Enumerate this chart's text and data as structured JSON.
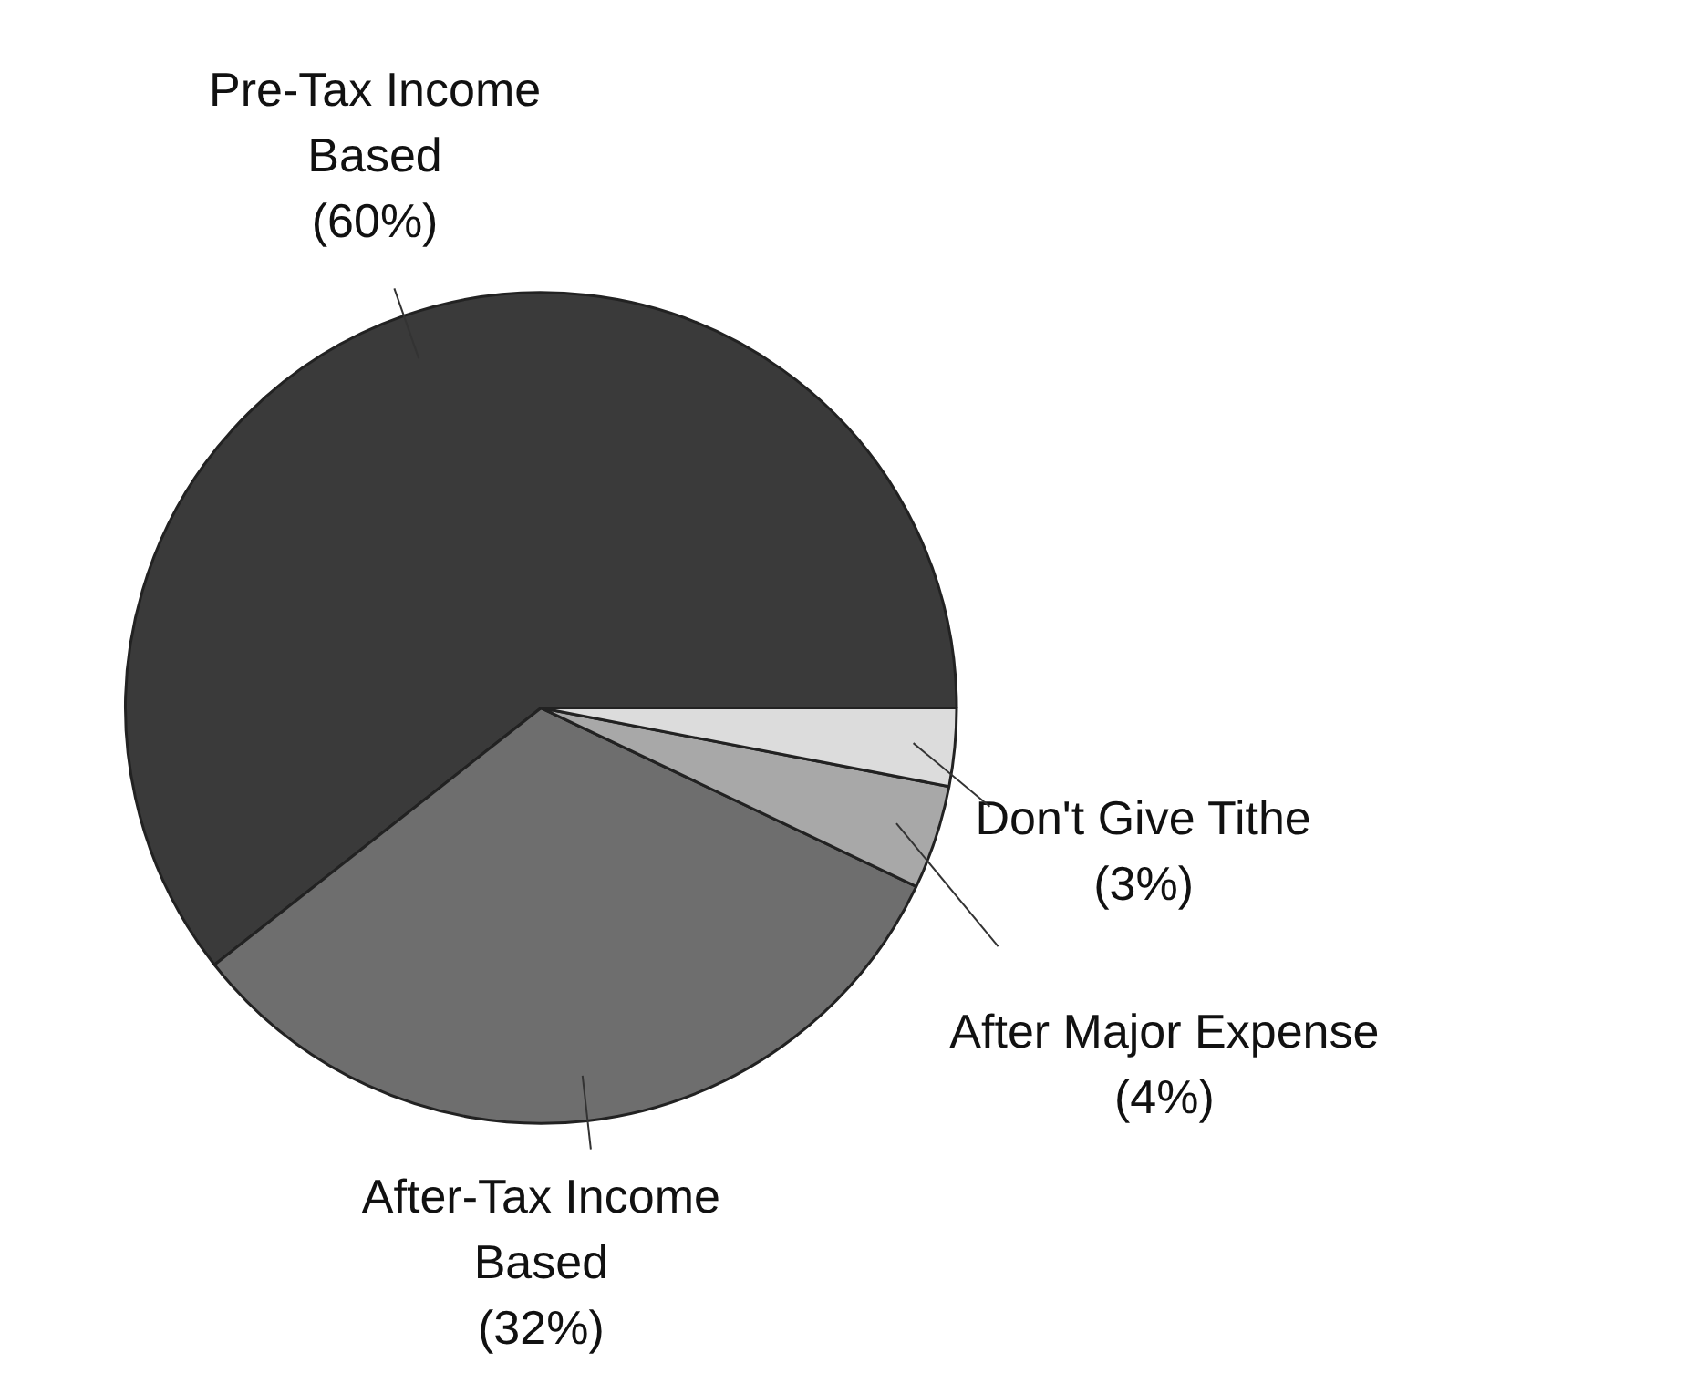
{
  "chart_data": {
    "type": "pie",
    "categories": [
      "Pre-Tax Income\nBased",
      "After-Tax Income\nBased",
      "After Major Expense",
      "Don't Give Tithe"
    ],
    "values": [
      60,
      32,
      4,
      3
    ],
    "value_labels": [
      "(60%)",
      "(32%)",
      "(4%)",
      "(3%)"
    ],
    "colors": [
      "#3a3a3a",
      "#6e6e6e",
      "#a8a8a8",
      "#dcdcdc"
    ]
  }
}
